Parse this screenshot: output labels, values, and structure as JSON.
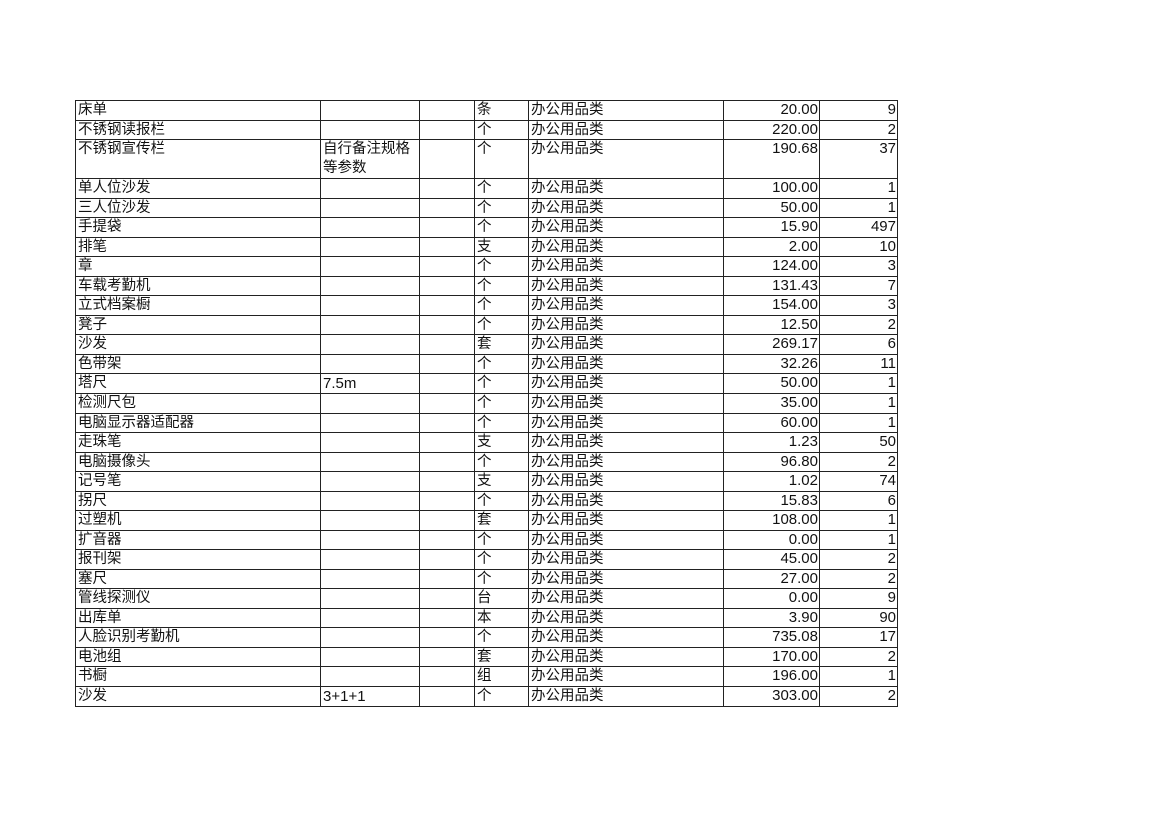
{
  "rows": [
    {
      "name": "床单",
      "spec": "",
      "blank": "",
      "unit": "条",
      "category": "办公用品类",
      "price": "20.00",
      "qty": "9"
    },
    {
      "name": "不锈钢读报栏",
      "spec": "",
      "blank": "",
      "unit": "个",
      "category": "办公用品类",
      "price": "220.00",
      "qty": "2"
    },
    {
      "name": "不锈钢宣传栏",
      "spec": "自行备注规格等参数",
      "blank": "",
      "unit": "个",
      "category": "办公用品类",
      "price": "190.68",
      "qty": "37"
    },
    {
      "name": "单人位沙发",
      "spec": "",
      "blank": "",
      "unit": "个",
      "category": "办公用品类",
      "price": "100.00",
      "qty": "1"
    },
    {
      "name": "三人位沙发",
      "spec": "",
      "blank": "",
      "unit": "个",
      "category": "办公用品类",
      "price": "50.00",
      "qty": "1"
    },
    {
      "name": "手提袋",
      "spec": "",
      "blank": "",
      "unit": "个",
      "category": "办公用品类",
      "price": "15.90",
      "qty": "497"
    },
    {
      "name": "排笔",
      "spec": "",
      "blank": "",
      "unit": "支",
      "category": "办公用品类",
      "price": "2.00",
      "qty": "10"
    },
    {
      "name": "章",
      "spec": "",
      "blank": "",
      "unit": "个",
      "category": "办公用品类",
      "price": "124.00",
      "qty": "3"
    },
    {
      "name": "车载考勤机",
      "spec": "",
      "blank": "",
      "unit": "个",
      "category": "办公用品类",
      "price": "131.43",
      "qty": "7"
    },
    {
      "name": "立式档案橱",
      "spec": "",
      "blank": "",
      "unit": "个",
      "category": "办公用品类",
      "price": "154.00",
      "qty": "3"
    },
    {
      "name": "凳子",
      "spec": "",
      "blank": "",
      "unit": "个",
      "category": "办公用品类",
      "price": "12.50",
      "qty": "2"
    },
    {
      "name": "沙发",
      "spec": "",
      "blank": "",
      "unit": "套",
      "category": "办公用品类",
      "price": "269.17",
      "qty": "6"
    },
    {
      "name": "色带架",
      "spec": "",
      "blank": "",
      "unit": "个",
      "category": "办公用品类",
      "price": "32.26",
      "qty": "11"
    },
    {
      "name": "塔尺",
      "spec": "7.5m",
      "blank": "",
      "unit": "个",
      "category": "办公用品类",
      "price": "50.00",
      "qty": "1"
    },
    {
      "name": "检测尺包",
      "spec": "",
      "blank": "",
      "unit": "个",
      "category": "办公用品类",
      "price": "35.00",
      "qty": "1"
    },
    {
      "name": "电脑显示器适配器",
      "spec": "",
      "blank": "",
      "unit": "个",
      "category": "办公用品类",
      "price": "60.00",
      "qty": "1"
    },
    {
      "name": "走珠笔",
      "spec": "",
      "blank": "",
      "unit": "支",
      "category": "办公用品类",
      "price": "1.23",
      "qty": "50"
    },
    {
      "name": "电脑摄像头",
      "spec": "",
      "blank": "",
      "unit": "个",
      "category": "办公用品类",
      "price": "96.80",
      "qty": "2"
    },
    {
      "name": "记号笔",
      "spec": "",
      "blank": "",
      "unit": "支",
      "category": "办公用品类",
      "price": "1.02",
      "qty": "74"
    },
    {
      "name": "拐尺",
      "spec": "",
      "blank": "",
      "unit": "个",
      "category": "办公用品类",
      "price": "15.83",
      "qty": "6"
    },
    {
      "name": "过塑机",
      "spec": "",
      "blank": "",
      "unit": "套",
      "category": "办公用品类",
      "price": "108.00",
      "qty": "1"
    },
    {
      "name": "扩音器",
      "spec": "",
      "blank": "",
      "unit": "个",
      "category": "办公用品类",
      "price": "0.00",
      "qty": "1"
    },
    {
      "name": "报刊架",
      "spec": "",
      "blank": "",
      "unit": "个",
      "category": "办公用品类",
      "price": "45.00",
      "qty": "2"
    },
    {
      "name": "塞尺",
      "spec": "",
      "blank": "",
      "unit": "个",
      "category": "办公用品类",
      "price": "27.00",
      "qty": "2"
    },
    {
      "name": "管线探测仪",
      "spec": "",
      "blank": "",
      "unit": "台",
      "category": "办公用品类",
      "price": "0.00",
      "qty": "9"
    },
    {
      "name": "出库单",
      "spec": "",
      "blank": "",
      "unit": "本",
      "category": "办公用品类",
      "price": "3.90",
      "qty": "90"
    },
    {
      "name": "人脸识别考勤机",
      "spec": "",
      "blank": "",
      "unit": "个",
      "category": "办公用品类",
      "price": "735.08",
      "qty": "17"
    },
    {
      "name": "电池组",
      "spec": "",
      "blank": "",
      "unit": "套",
      "category": "办公用品类",
      "price": "170.00",
      "qty": "2"
    },
    {
      "name": "书橱",
      "spec": "",
      "blank": "",
      "unit": "组",
      "category": "办公用品类",
      "price": "196.00",
      "qty": "1"
    },
    {
      "name": "沙发",
      "spec": "3+1+1",
      "blank": "",
      "unit": "个",
      "category": "办公用品类",
      "price": "303.00",
      "qty": "2"
    }
  ]
}
